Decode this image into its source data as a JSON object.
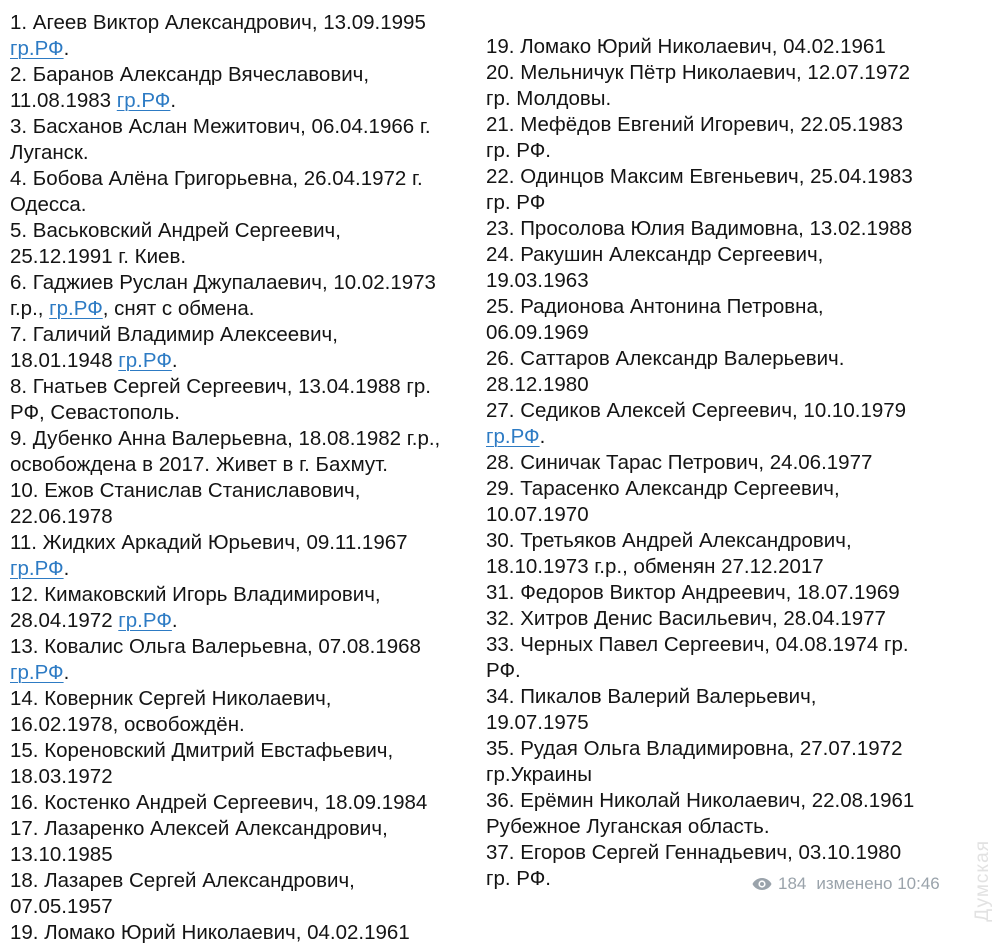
{
  "message": {
    "left_column": [
      [
        {
          "t": "1. Агеев Виктор Александрович, 13.09.1995"
        }
      ],
      [
        {
          "t": "гр.РФ",
          "link": true
        },
        {
          "t": "."
        }
      ],
      [
        {
          "t": "2. Баранов Александр Вячеславович,"
        }
      ],
      [
        {
          "t": "11.08.1983 "
        },
        {
          "t": "гр.РФ",
          "link": true
        },
        {
          "t": "."
        }
      ],
      [
        {
          "t": "3. Басханов Аслан Межитович, 06.04.1966 г."
        }
      ],
      [
        {
          "t": "Луганск."
        }
      ],
      [
        {
          "t": "4. Бобова Алёна Григорьевна, 26.04.1972 г."
        }
      ],
      [
        {
          "t": "Одесса."
        }
      ],
      [
        {
          "t": "5. Васьковский Андрей Сергеевич,"
        }
      ],
      [
        {
          "t": "25.12.1991 г. Киев."
        }
      ],
      [
        {
          "t": "6. Гаджиев Руслан Джупалаевич, 10.02.1973"
        }
      ],
      [
        {
          "t": "г.р., "
        },
        {
          "t": "гр.РФ",
          "link": true
        },
        {
          "t": ", снят с обмена."
        }
      ],
      [
        {
          "t": "7. Галичий Владимир Алексеевич,"
        }
      ],
      [
        {
          "t": "18.01.1948 "
        },
        {
          "t": "гр.РФ",
          "link": true
        },
        {
          "t": "."
        }
      ],
      [
        {
          "t": "8. Гнатьев Сергей Сергеевич, 13.04.1988 гр."
        }
      ],
      [
        {
          "t": "РФ, Севастополь."
        }
      ],
      [
        {
          "t": "9. Дубенко Анна Валерьевна, 18.08.1982 г.р.,"
        }
      ],
      [
        {
          "t": "освобождена в 2017. Живет в г. Бахмут."
        }
      ],
      [
        {
          "t": "10. Ежов Станислав Станиславович,"
        }
      ],
      [
        {
          "t": "22.06.1978"
        }
      ],
      [
        {
          "t": "11. Жидких Аркадий Юрьевич, 09.11.1967"
        }
      ],
      [
        {
          "t": "гр.РФ",
          "link": true
        },
        {
          "t": "."
        }
      ],
      [
        {
          "t": "12. Кимаковский Игорь Владимирович,"
        }
      ],
      [
        {
          "t": "28.04.1972 "
        },
        {
          "t": "гр.РФ",
          "link": true
        },
        {
          "t": "."
        }
      ],
      [
        {
          "t": "13. Ковалис Ольга Валерьевна, 07.08.1968"
        }
      ],
      [
        {
          "t": "гр.РФ",
          "link": true
        },
        {
          "t": "."
        }
      ],
      [
        {
          "t": "14. Коверник Сергей Николаевич,"
        }
      ],
      [
        {
          "t": "16.02.1978, освобождён."
        }
      ],
      [
        {
          "t": "15. Кореновский Дмитрий Евстафьевич,"
        }
      ],
      [
        {
          "t": "18.03.1972"
        }
      ],
      [
        {
          "t": "16. Костенко Андрей Сергеевич, 18.09.1984"
        }
      ],
      [
        {
          "t": "17. Лазаренко Алексей Александрович,"
        }
      ],
      [
        {
          "t": "13.10.1985"
        }
      ],
      [
        {
          "t": "18. Лазарев Сергей Александрович,"
        }
      ],
      [
        {
          "t": "07.05.1957"
        }
      ],
      [
        {
          "t": "19. Ломако Юрий Николаевич, 04.02.1961"
        }
      ]
    ],
    "right_column": [
      [
        {
          "t": "19. Ломако Юрий Николаевич, 04.02.1961"
        }
      ],
      [
        {
          "t": "20. Мельничук Пётр Николаевич, 12.07.1972"
        }
      ],
      [
        {
          "t": "гр. Молдовы."
        }
      ],
      [
        {
          "t": "21. Мефёдов Евгений Игоревич, 22.05.1983"
        }
      ],
      [
        {
          "t": "гр. РФ."
        }
      ],
      [
        {
          "t": "22. Одинцов Максим Евгеньевич, 25.04.1983"
        }
      ],
      [
        {
          "t": "гр. РФ"
        }
      ],
      [
        {
          "t": "23. Просолова Юлия Вадимовна, 13.02.1988"
        }
      ],
      [
        {
          "t": "24. Ракушин Александр Сергеевич,"
        }
      ],
      [
        {
          "t": "19.03.1963"
        }
      ],
      [
        {
          "t": "25. Радионова Антонина Петровна,"
        }
      ],
      [
        {
          "t": "06.09.1969"
        }
      ],
      [
        {
          "t": "26. Саттаров Александр Валерьевич."
        }
      ],
      [
        {
          "t": "28.12.1980"
        }
      ],
      [
        {
          "t": "27. Седиков Алексей Сергеевич, 10.10.1979"
        }
      ],
      [
        {
          "t": "гр.РФ",
          "link": true
        },
        {
          "t": "."
        }
      ],
      [
        {
          "t": "28. Синичак Тарас Петрович, 24.06.1977"
        }
      ],
      [
        {
          "t": "29. Тарасенко Александр Сергеевич,"
        }
      ],
      [
        {
          "t": "10.07.1970"
        }
      ],
      [
        {
          "t": "30. Третьяков Андрей Александрович,"
        }
      ],
      [
        {
          "t": "18.10.1973 г.р., обменян 27.12.2017"
        }
      ],
      [
        {
          "t": "31. Федоров Виктор Андреевич, 18.07.1969"
        }
      ],
      [
        {
          "t": "32. Хитров Денис Васильевич, 28.04.1977"
        }
      ],
      [
        {
          "t": "33. Черных Павел Сергеевич, 04.08.1974 гр."
        }
      ],
      [
        {
          "t": "РФ."
        }
      ],
      [
        {
          "t": "34. Пикалов Валерий Валерьевич,"
        }
      ],
      [
        {
          "t": "19.07.1975"
        }
      ],
      [
        {
          "t": "35. Рудая Ольга Владимировна, 27.07.1972"
        }
      ],
      [
        {
          "t": "гр.Украины"
        }
      ],
      [
        {
          "t": "36. Ерёмин Николай Николаевич, 22.08.1961"
        }
      ],
      [
        {
          "t": "Рубежное Луганская область."
        }
      ],
      [
        {
          "t": "37. Егоров Сергей Геннадьевич, 03.10.1980"
        }
      ],
      [
        {
          "t": "гр. РФ."
        }
      ]
    ]
  },
  "footer": {
    "views_icon": "eye-icon",
    "views": "184",
    "edited": "изменено 10:46"
  },
  "watermark": "Думская",
  "colors": {
    "link": "#2d7bc4",
    "text": "#141414",
    "meta": "#9aa3ab"
  }
}
